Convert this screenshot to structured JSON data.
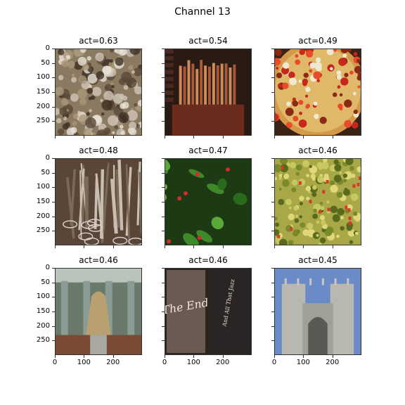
{
  "figure": {
    "title": "Channel 13"
  },
  "chart_data": {
    "type": "image-grid",
    "rows": 3,
    "cols": 3,
    "image_extent": [
      0,
      299
    ],
    "yticks": [
      "0",
      "50",
      "100",
      "150",
      "200",
      "250"
    ],
    "xticks": [
      "0",
      "100",
      "200"
    ],
    "panels": [
      {
        "title": "act=0.63",
        "activation": 0.63,
        "subject": "textured-foliage"
      },
      {
        "title": "act=0.54",
        "activation": 0.54,
        "subject": "pipe-organ"
      },
      {
        "title": "act=0.49",
        "activation": 0.49,
        "subject": "pizza"
      },
      {
        "title": "act=0.48",
        "activation": 0.48,
        "subject": "metal-tools"
      },
      {
        "title": "act=0.47",
        "activation": 0.47,
        "subject": "strawberry-plant"
      },
      {
        "title": "act=0.46",
        "activation": 0.46,
        "subject": "guacamole"
      },
      {
        "title": "act=0.46",
        "activation": 0.46,
        "subject": "cathedral-interior"
      },
      {
        "title": "act=0.46",
        "activation": 0.46,
        "subject": "film-title-cards"
      },
      {
        "title": "act=0.45",
        "activation": 0.45,
        "subject": "gothic-abbey"
      }
    ],
    "title_cards": {
      "left": "The End",
      "right": "And All That Jazz"
    }
  }
}
